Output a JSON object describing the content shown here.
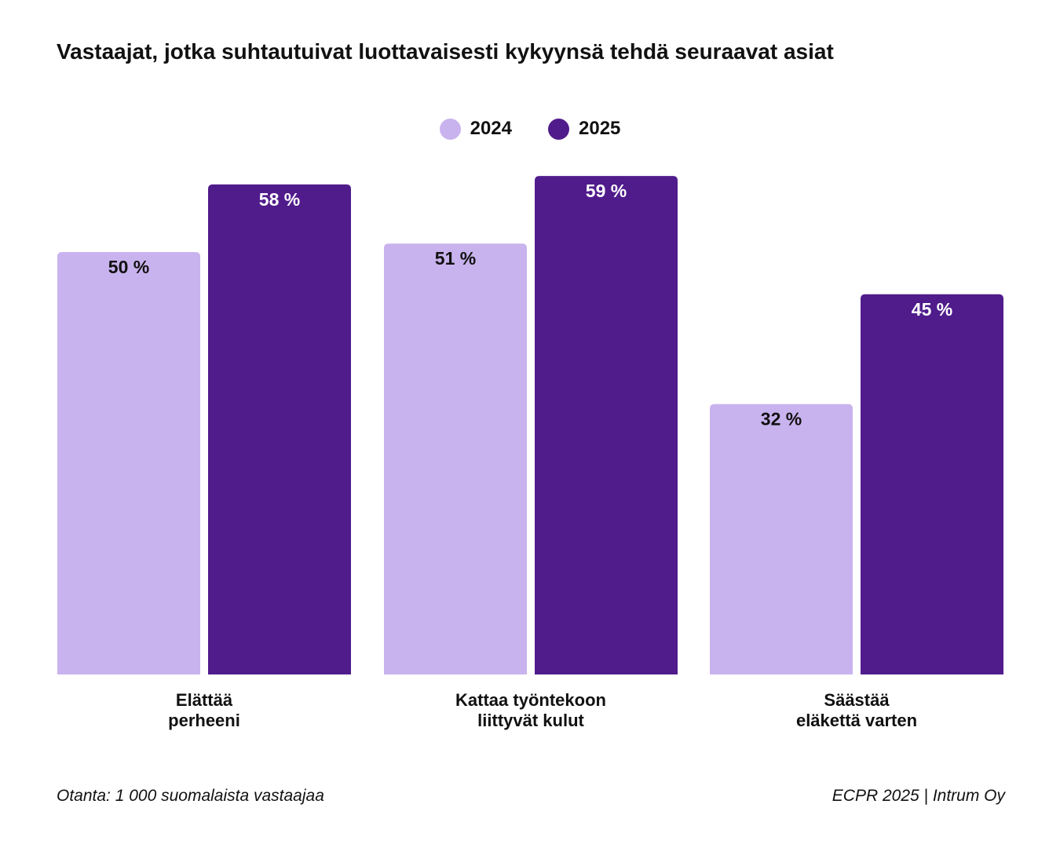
{
  "chart_data": {
    "type": "bar",
    "title": "Vastaajat, jotka suhtautuivat luottavaisesti kykyynsä tehdä seuraavat asiat",
    "categories": [
      [
        "Elättää",
        "perheeni"
      ],
      [
        "Kattaa työntekoon",
        "liittyvät kulut"
      ],
      [
        "Säästää",
        "eläkettä varten"
      ]
    ],
    "series": [
      {
        "name": "2024",
        "values": [
          50,
          51,
          32
        ],
        "color": "#c9b3ee",
        "label_color": "#111111"
      },
      {
        "name": "2025",
        "values": [
          58,
          59,
          45
        ],
        "color": "#501c8c",
        "label_color": "#ffffff"
      }
    ],
    "value_suffix": " %",
    "ylim": [
      0,
      100
    ],
    "grid": false,
    "legend_placement": "top-center"
  },
  "footer": {
    "source_left": "Otanta: 1 000 suomalaista vastaajaa",
    "source_right": "ECPR 2025 | Intrum Oy"
  }
}
